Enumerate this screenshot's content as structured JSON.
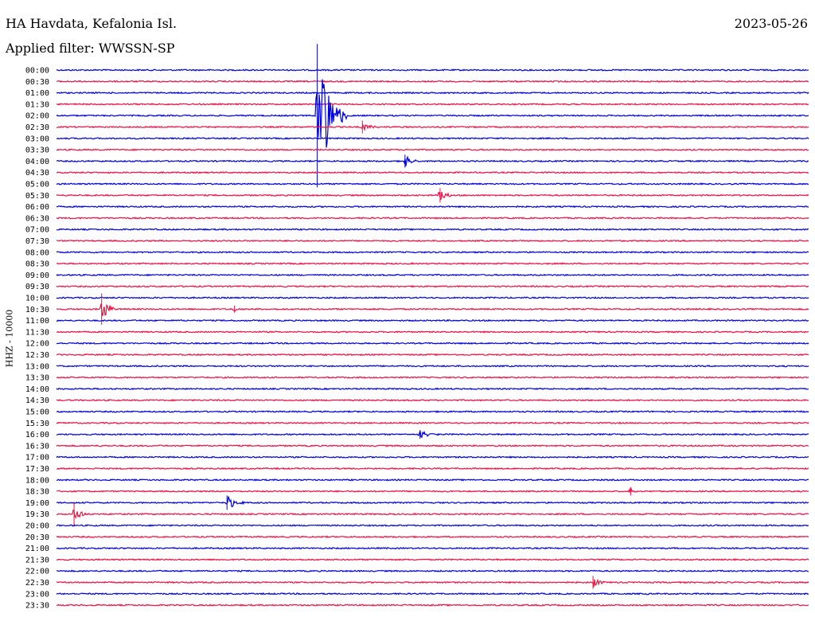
{
  "header": {
    "station": "HA Havdata, Kefalonia Isl.",
    "date": "2023-05-26",
    "filter": "Applied filter: WWSSN-SP"
  },
  "colors": {
    "blue": "#0000dd",
    "red": "#ee1144"
  },
  "chart_data": {
    "type": "line",
    "ylabel": "HHZ - 10000",
    "traces": [
      {
        "time": "00:00",
        "color": "blue"
      },
      {
        "time": "00:30",
        "color": "red"
      },
      {
        "time": "01:00",
        "color": "blue"
      },
      {
        "time": "01:30",
        "color": "red"
      },
      {
        "time": "02:00",
        "color": "blue"
      },
      {
        "time": "02:30",
        "color": "red"
      },
      {
        "time": "03:00",
        "color": "blue"
      },
      {
        "time": "03:30",
        "color": "red"
      },
      {
        "time": "04:00",
        "color": "blue"
      },
      {
        "time": "04:30",
        "color": "red"
      },
      {
        "time": "05:00",
        "color": "blue"
      },
      {
        "time": "05:30",
        "color": "red"
      },
      {
        "time": "06:00",
        "color": "blue"
      },
      {
        "time": "06:30",
        "color": "red"
      },
      {
        "time": "07:00",
        "color": "blue"
      },
      {
        "time": "07:30",
        "color": "red"
      },
      {
        "time": "08:00",
        "color": "blue"
      },
      {
        "time": "08:30",
        "color": "red"
      },
      {
        "time": "09:00",
        "color": "blue"
      },
      {
        "time": "09:30",
        "color": "red"
      },
      {
        "time": "10:00",
        "color": "blue"
      },
      {
        "time": "10:30",
        "color": "red"
      },
      {
        "time": "11:00",
        "color": "blue"
      },
      {
        "time": "11:30",
        "color": "red"
      },
      {
        "time": "12:00",
        "color": "blue"
      },
      {
        "time": "12:30",
        "color": "red"
      },
      {
        "time": "13:00",
        "color": "blue"
      },
      {
        "time": "13:30",
        "color": "red"
      },
      {
        "time": "14:00",
        "color": "blue"
      },
      {
        "time": "14:30",
        "color": "red"
      },
      {
        "time": "15:00",
        "color": "blue"
      },
      {
        "time": "15:30",
        "color": "red"
      },
      {
        "time": "16:00",
        "color": "blue"
      },
      {
        "time": "16:30",
        "color": "red"
      },
      {
        "time": "17:00",
        "color": "blue"
      },
      {
        "time": "17:30",
        "color": "red"
      },
      {
        "time": "18:00",
        "color": "blue"
      },
      {
        "time": "18:30",
        "color": "red"
      },
      {
        "time": "19:00",
        "color": "blue"
      },
      {
        "time": "19:30",
        "color": "red"
      },
      {
        "time": "20:00",
        "color": "blue"
      },
      {
        "time": "20:30",
        "color": "red"
      },
      {
        "time": "21:00",
        "color": "blue"
      },
      {
        "time": "21:30",
        "color": "red"
      },
      {
        "time": "22:00",
        "color": "blue"
      },
      {
        "time": "22:30",
        "color": "red"
      },
      {
        "time": "23:00",
        "color": "blue"
      },
      {
        "time": "23:30",
        "color": "red"
      }
    ],
    "events": [
      {
        "trace": "02:00",
        "minute": 10.4,
        "amplitude": 100,
        "duration": 1.2
      },
      {
        "trace": "02:30",
        "minute": 12.2,
        "amplitude": 9,
        "duration": 0.6
      },
      {
        "trace": "04:00",
        "minute": 13.9,
        "amplitude": 9,
        "duration": 0.6
      },
      {
        "trace": "05:30",
        "minute": 15.3,
        "amplitude": 10,
        "duration": 0.6
      },
      {
        "trace": "10:30",
        "minute": 1.8,
        "amplitude": 22,
        "duration": 0.6
      },
      {
        "trace": "10:30",
        "minute": 7.1,
        "amplitude": 5,
        "duration": 0.2
      },
      {
        "trace": "16:00",
        "minute": 14.5,
        "amplitude": 6,
        "duration": 0.8
      },
      {
        "trace": "18:30",
        "minute": 22.9,
        "amplitude": 6,
        "duration": 0.4
      },
      {
        "trace": "19:00",
        "minute": 6.8,
        "amplitude": 10,
        "duration": 0.8
      },
      {
        "trace": "19:30",
        "minute": 0.7,
        "amplitude": 16,
        "duration": 0.6
      },
      {
        "trace": "22:30",
        "minute": 21.4,
        "amplitude": 9,
        "duration": 0.5
      }
    ]
  }
}
